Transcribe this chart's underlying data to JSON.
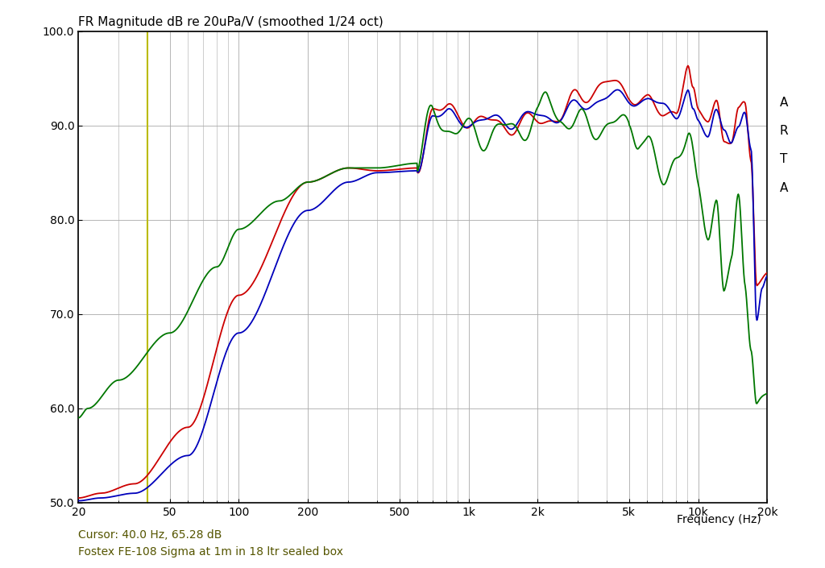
{
  "title": "FR Magnitude dB re 20uPa/V (smoothed 1/24 oct)",
  "xlabel": "Frequency (Hz)",
  "cursor_text": "Cursor: 40.0 Hz, 65.28 dB",
  "subtitle": "Fostex FE-108 Sigma at 1m in 18 ltr sealed box",
  "ylim": [
    50.0,
    100.0
  ],
  "xlim": [
    20,
    20000
  ],
  "yticks": [
    50.0,
    60.0,
    70.0,
    80.0,
    90.0,
    100.0
  ],
  "bg_color": "#ffffff",
  "grid_color": "#aaaaaa",
  "cursor_freq": 40.0,
  "cursor_color": "#bbbb00",
  "line_width": 1.3,
  "tick_color": "#000000",
  "title_color": "#000000",
  "label_color": "#555500",
  "spine_color": "#000000",
  "arta_color": "#000000",
  "colors": {
    "red": "#cc0000",
    "blue": "#0000bb",
    "green": "#007700"
  }
}
